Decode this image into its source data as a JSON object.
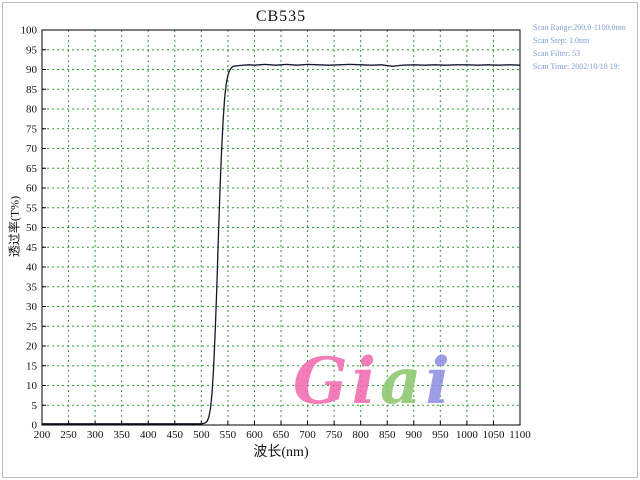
{
  "frame": {
    "border_color": "#bdbdbd",
    "background": "#ffffff"
  },
  "chart_data": {
    "type": "line",
    "title": "CB535",
    "xlabel": "波长(nm)",
    "ylabel": "透过率(T%)",
    "xlim": [
      200,
      1100
    ],
    "ylim": [
      0,
      100
    ],
    "x_tick_step": 50,
    "y_tick_step": 5,
    "grid": true,
    "grid_color": "#2f9e2f",
    "line_color": "#15152e",
    "axis_color": "#000000",
    "legend": "none",
    "series": [
      {
        "name": "CB535 transmittance",
        "points": [
          [
            200,
            0.3
          ],
          [
            250,
            0.3
          ],
          [
            300,
            0.3
          ],
          [
            350,
            0.3
          ],
          [
            400,
            0.3
          ],
          [
            450,
            0.3
          ],
          [
            480,
            0.3
          ],
          [
            495,
            0.3
          ],
          [
            500,
            0.3
          ],
          [
            505,
            0.4
          ],
          [
            508,
            0.6
          ],
          [
            511,
            1.0
          ],
          [
            514,
            2.0
          ],
          [
            517,
            4.0
          ],
          [
            520,
            8.0
          ],
          [
            523,
            14
          ],
          [
            526,
            23
          ],
          [
            529,
            34
          ],
          [
            532,
            47
          ],
          [
            535,
            59
          ],
          [
            538,
            69
          ],
          [
            541,
            77
          ],
          [
            544,
            83
          ],
          [
            547,
            86.5
          ],
          [
            550,
            88.5
          ],
          [
            553,
            89.7
          ],
          [
            556,
            90.3
          ],
          [
            558,
            90.6
          ],
          [
            560,
            90.8
          ],
          [
            570,
            91.0
          ],
          [
            580,
            91.1
          ],
          [
            590,
            91.2
          ],
          [
            600,
            91.1
          ],
          [
            610,
            91.2
          ],
          [
            620,
            91.3
          ],
          [
            630,
            91.2
          ],
          [
            640,
            91.1
          ],
          [
            650,
            91.2
          ],
          [
            660,
            91.3
          ],
          [
            670,
            91.2
          ],
          [
            680,
            91.1
          ],
          [
            690,
            91.2
          ],
          [
            700,
            91.3
          ],
          [
            720,
            91.2
          ],
          [
            740,
            91.1
          ],
          [
            760,
            91.2
          ],
          [
            780,
            91.3
          ],
          [
            800,
            91.2
          ],
          [
            820,
            91.1
          ],
          [
            840,
            91.2
          ],
          [
            850,
            91.0
          ],
          [
            860,
            90.8
          ],
          [
            870,
            91.0
          ],
          [
            880,
            91.1
          ],
          [
            900,
            91.2
          ],
          [
            920,
            91.1
          ],
          [
            940,
            91.2
          ],
          [
            960,
            91.1
          ],
          [
            980,
            91.2
          ],
          [
            1000,
            91.2
          ],
          [
            1020,
            91.1
          ],
          [
            1040,
            91.2
          ],
          [
            1060,
            91.1
          ],
          [
            1080,
            91.2
          ],
          [
            1100,
            91.1
          ]
        ]
      }
    ]
  },
  "scan_info": {
    "color": "#7f9fd2",
    "lines": [
      "Scan Range:200.0-1100.0nm",
      "Scan Step: 1.0nm",
      "Scan Filter: 53",
      "Scan Time: 2002/10/18 19:"
    ]
  },
  "watermark": {
    "text": "Giai",
    "letter_colors": [
      "#f26cb0",
      "#f26cb0",
      "#8cc870",
      "#9090e2"
    ]
  }
}
